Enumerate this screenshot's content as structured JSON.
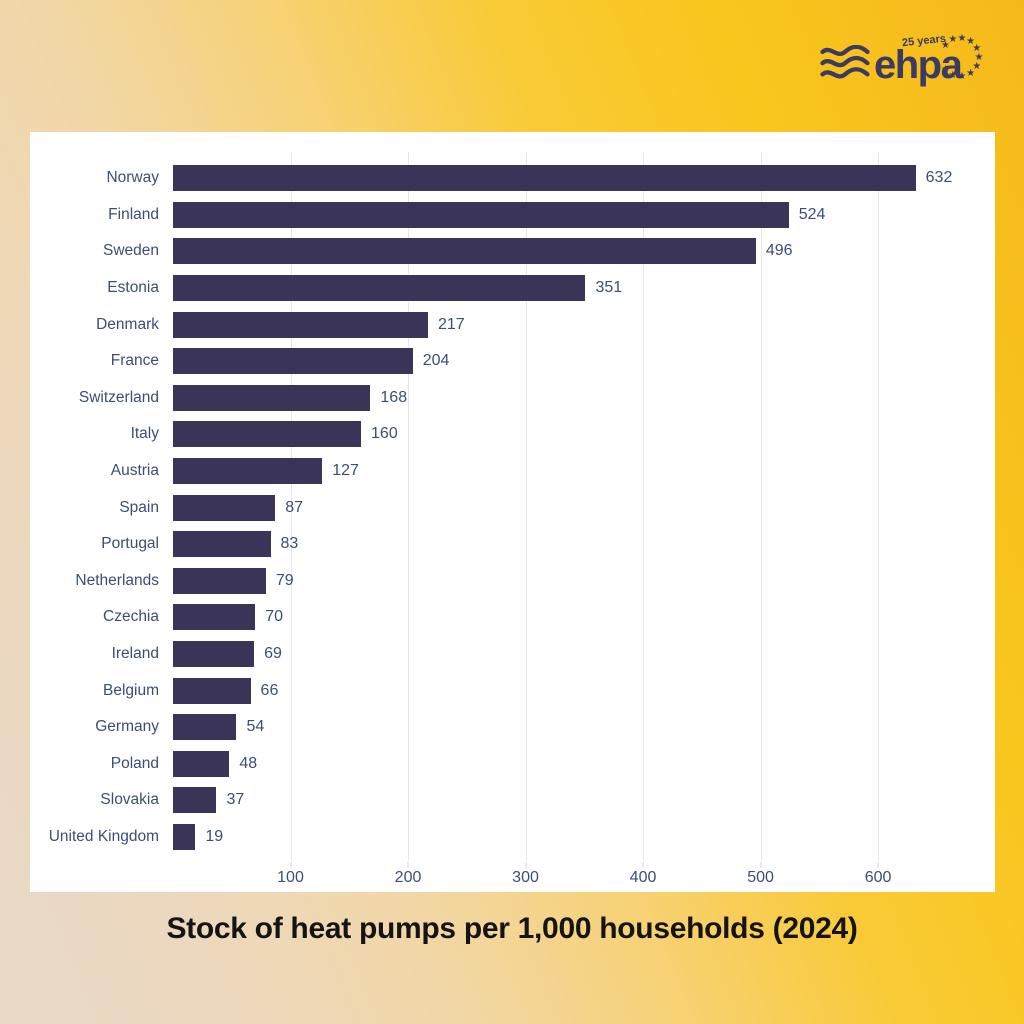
{
  "header": {
    "logo": {
      "brand": "ehpa",
      "badge": "25 years",
      "color": "#3b3a63"
    }
  },
  "chart_data": {
    "type": "bar",
    "orientation": "horizontal",
    "title": "Stock of heat pumps per 1,000 households (2024)",
    "categories": [
      "Norway",
      "Finland",
      "Sweden",
      "Estonia",
      "Denmark",
      "France",
      "Switzerland",
      "Italy",
      "Austria",
      "Spain",
      "Portugal",
      "Netherlands",
      "Czechia",
      "Ireland",
      "Belgium",
      "Germany",
      "Poland",
      "Slovakia",
      "United Kingdom"
    ],
    "values": [
      632,
      524,
      496,
      351,
      217,
      204,
      168,
      160,
      127,
      87,
      83,
      79,
      70,
      69,
      66,
      54,
      48,
      37,
      19
    ],
    "x_ticks": [
      100,
      200,
      300,
      400,
      500,
      600
    ],
    "xlim": [
      0,
      691
    ],
    "grid": true,
    "legend": false,
    "value_labels": true,
    "bar_color": "#3a3459",
    "label_color": "#3d4e74",
    "grid_color": "#e7e7e7",
    "background": "#ffffff"
  },
  "page": {
    "background_left": "#e9d9c7",
    "background_right": "#f5b91b"
  }
}
